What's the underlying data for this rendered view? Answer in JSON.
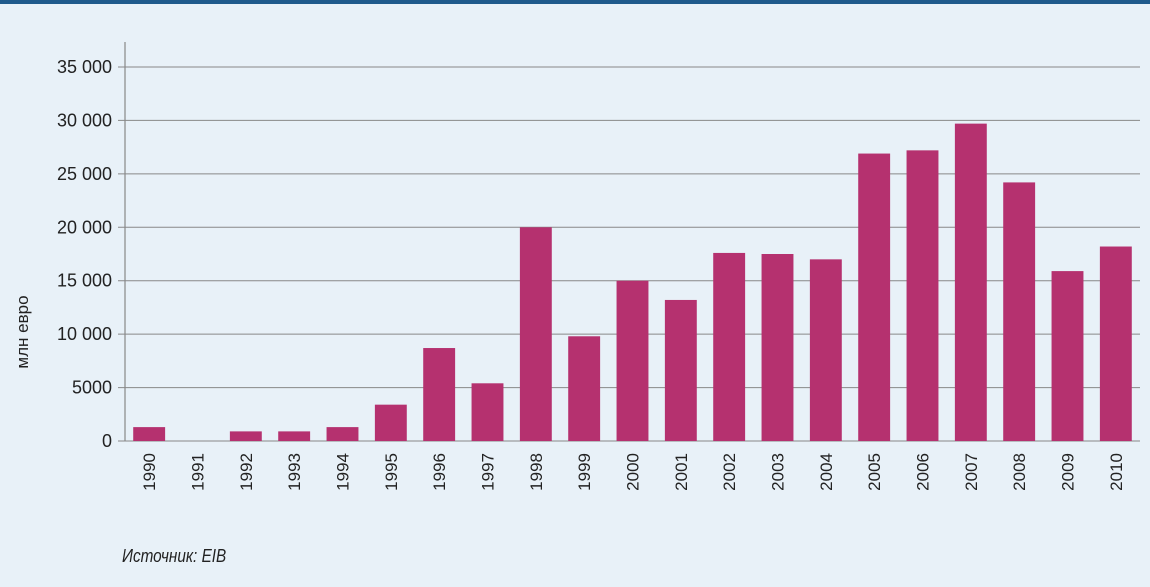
{
  "chart_data": {
    "type": "bar",
    "title": "",
    "xlabel": "",
    "ylabel": "млн евро",
    "ylim": [
      0,
      35000
    ],
    "yticks": [
      0,
      5000,
      10000,
      15000,
      20000,
      25000,
      30000,
      35000
    ],
    "ytick_labels": [
      "0",
      "5000",
      "10 000",
      "15 000",
      "20 000",
      "25 000",
      "30 000",
      "35 000"
    ],
    "grid": true,
    "categories": [
      "1990",
      "1991",
      "1992",
      "1993",
      "1994",
      "1995",
      "1996",
      "1997",
      "1998",
      "1999",
      "2000",
      "2001",
      "2002",
      "2003",
      "2004",
      "2005",
      "2006",
      "2007",
      "2008",
      "2009",
      "2010"
    ],
    "values": [
      1300,
      0,
      900,
      900,
      1300,
      3400,
      8700,
      5400,
      20000,
      9800,
      15000,
      13200,
      17600,
      17500,
      17000,
      26900,
      27200,
      29700,
      24200,
      15900,
      18200
    ],
    "bar_color": "#b5316f",
    "grid_color": "#888888"
  },
  "source_note": "Источник: EIB"
}
